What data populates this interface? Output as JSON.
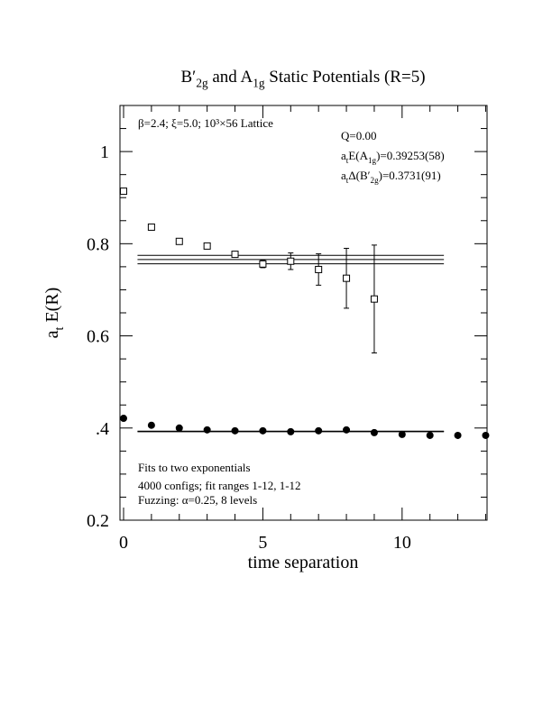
{
  "chart_data": {
    "type": "scatter",
    "title": [
      "B′",
      "2g",
      " and A",
      "1g",
      " Static Potentials (R=5)"
    ],
    "xlabel": "time separation",
    "ylabel": [
      "a",
      "t",
      " E(R)"
    ],
    "xlim": [
      -0.13,
      13.05
    ],
    "ylim": [
      0.2,
      1.1
    ],
    "xticks": [
      0,
      5,
      10
    ],
    "xminor": [
      1,
      2,
      3,
      4,
      6,
      7,
      8,
      9,
      11,
      12,
      13
    ],
    "yticks": [
      0.2,
      {
        "value": 0.4,
        "label": ".4"
      },
      0.6,
      0.8,
      1
    ],
    "yminor": [
      0.25,
      0.3,
      0.35,
      0.45,
      0.5,
      0.55,
      0.65,
      0.7,
      0.75,
      0.85,
      0.9,
      0.95,
      1.05
    ],
    "series": [
      {
        "marker": "open-square",
        "color": "#000",
        "x": [
          0,
          1,
          2,
          3,
          4,
          5,
          6,
          7,
          8,
          9
        ],
        "values": [
          0.914,
          0.836,
          0.805,
          0.795,
          0.777,
          0.756,
          0.762,
          0.744,
          0.725,
          0.68
        ],
        "errors": [
          0.003,
          0.003,
          0.004,
          0.004,
          0.005,
          0.008,
          0.018,
          0.034,
          0.065,
          0.117
        ]
      },
      {
        "marker": "filled-circle",
        "color": "#000",
        "x": [
          0,
          1,
          2,
          3,
          4,
          5,
          6,
          7,
          8,
          9,
          10,
          11,
          12,
          13
        ],
        "values": [
          0.421,
          0.406,
          0.4,
          0.396,
          0.394,
          0.394,
          0.392,
          0.394,
          0.396,
          0.39,
          0.386,
          0.384,
          0.384,
          0.384
        ]
      }
    ],
    "fits": [
      {
        "x": [
          0.5,
          11.5
        ],
        "value": 0.7656,
        "error": 0.0091
      },
      {
        "x": [
          0.5,
          11.5
        ],
        "value": 0.39253,
        "error": 0.00058
      }
    ],
    "annotations": [
      [
        "β=2.4; ξ=5.0; 10³×56 Lattice"
      ],
      [
        "Q=0.00"
      ],
      [
        "a",
        "t",
        "E(A",
        "1g",
        ")=0.39253(58)"
      ],
      [
        "a",
        "t",
        "Δ(B′",
        "2g",
        ")=0.3731(91)"
      ],
      [
        "Fits to two exponentials"
      ],
      [
        "4000 configs; fit ranges 1-12, 1-12"
      ],
      [
        "Fuzzing: α=0.25, 8 levels"
      ]
    ]
  }
}
